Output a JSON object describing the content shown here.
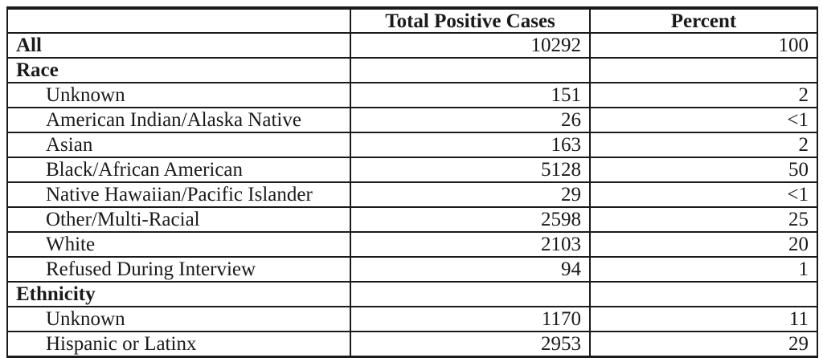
{
  "table": {
    "columns": [
      "",
      "Total Positive Cases",
      "Percent"
    ],
    "rows": [
      {
        "label": "All",
        "bold": true,
        "indent": false,
        "cases": "10292",
        "percent": "100"
      },
      {
        "label": "Race",
        "bold": true,
        "indent": false,
        "cases": "",
        "percent": ""
      },
      {
        "label": "Unknown",
        "bold": false,
        "indent": true,
        "cases": "151",
        "percent": "2"
      },
      {
        "label": "American Indian/Alaska Native",
        "bold": false,
        "indent": true,
        "cases": "26",
        "percent": "<1"
      },
      {
        "label": "Asian",
        "bold": false,
        "indent": true,
        "cases": "163",
        "percent": "2"
      },
      {
        "label": "Black/African American",
        "bold": false,
        "indent": true,
        "cases": "5128",
        "percent": "50"
      },
      {
        "label": "Native Hawaiian/Pacific Islander",
        "bold": false,
        "indent": true,
        "cases": "29",
        "percent": "<1"
      },
      {
        "label": "Other/Multi-Racial",
        "bold": false,
        "indent": true,
        "cases": "2598",
        "percent": "25"
      },
      {
        "label": "White",
        "bold": false,
        "indent": true,
        "cases": "2103",
        "percent": "20"
      },
      {
        "label": "Refused During Interview",
        "bold": false,
        "indent": true,
        "cases": "94",
        "percent": "1"
      },
      {
        "label": "Ethnicity",
        "bold": true,
        "indent": false,
        "cases": "",
        "percent": ""
      },
      {
        "label": "Unknown",
        "bold": false,
        "indent": true,
        "cases": "1170",
        "percent": "11"
      },
      {
        "label": "Hispanic or Latinx",
        "bold": false,
        "indent": true,
        "cases": "2953",
        "percent": "29"
      }
    ]
  }
}
